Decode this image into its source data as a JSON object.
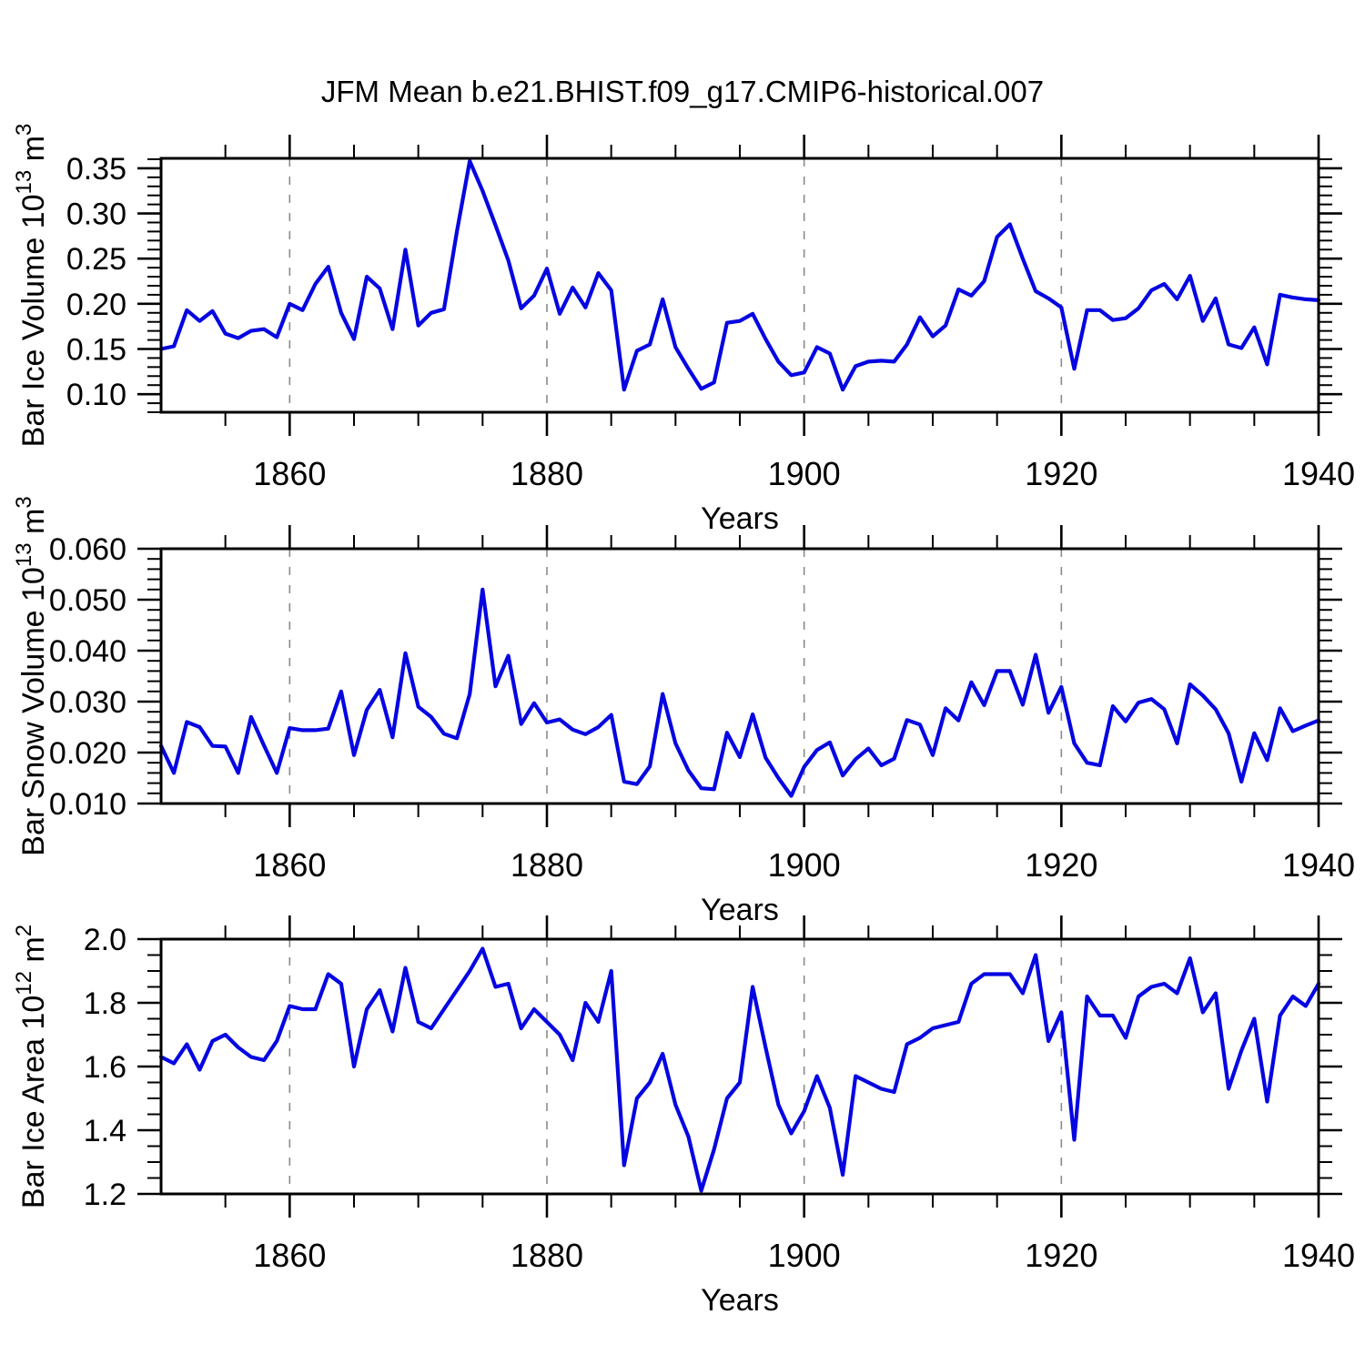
{
  "title": "JFM Mean b.e21.BHIST.f09_g17.CMIP6-historical.007",
  "line_color": "#0505e2",
  "axis_color": "#000000",
  "grid_color": "#8a8a8a",
  "chart_data": [
    {
      "type": "line",
      "name": "ice-volume",
      "ylabel_parts": [
        {
          "t": "Bar Ice Volume 10"
        },
        {
          "sup": "13"
        },
        {
          "t": " m"
        },
        {
          "sup": "3"
        }
      ],
      "xlabel": "Years",
      "x_start": 1850,
      "x_end": 1940,
      "x_major_ticks": [
        1860,
        1880,
        1900,
        1920,
        1940
      ],
      "x_minor_step": 5,
      "gridlines_x": [
        1860,
        1880,
        1900,
        1920
      ],
      "ylim": [
        0.08,
        0.361
      ],
      "y_major_ticks": [
        0.35,
        0.3,
        0.25,
        0.2,
        0.15,
        0.1
      ],
      "y_tick_labels": [
        "0.35",
        "0.30",
        "0.25",
        "0.20",
        "0.15",
        "0.10"
      ],
      "y_minor_step": 0.01,
      "values": [
        0.15,
        0.153,
        0.193,
        0.181,
        0.192,
        0.167,
        0.162,
        0.17,
        0.172,
        0.163,
        0.2,
        0.193,
        0.222,
        0.241,
        0.19,
        0.161,
        0.23,
        0.217,
        0.172,
        0.26,
        0.176,
        0.19,
        0.194,
        0.28,
        0.358,
        0.325,
        0.287,
        0.248,
        0.195,
        0.209,
        0.239,
        0.189,
        0.218,
        0.196,
        0.234,
        0.215,
        0.105,
        0.148,
        0.155,
        0.205,
        0.152,
        0.128,
        0.106,
        0.113,
        0.179,
        0.181,
        0.189,
        0.161,
        0.136,
        0.121,
        0.124,
        0.152,
        0.145,
        0.105,
        0.131,
        0.136,
        0.137,
        0.136,
        0.155,
        0.185,
        0.164,
        0.176,
        0.216,
        0.209,
        0.225,
        0.274,
        0.288,
        0.25,
        0.214,
        0.206,
        0.196,
        0.128,
        0.193,
        0.193,
        0.182,
        0.184,
        0.195,
        0.215,
        0.222,
        0.205,
        0.231,
        0.181,
        0.206,
        0.155,
        0.151,
        0.174,
        0.133,
        0.21,
        0.207,
        0.205,
        0.204
      ]
    },
    {
      "type": "line",
      "name": "snow-volume",
      "ylabel_parts": [
        {
          "t": "Bar Snow Volume 10"
        },
        {
          "sup": "13"
        },
        {
          "t": " m"
        },
        {
          "sup": "3"
        }
      ],
      "xlabel": "Years",
      "x_start": 1850,
      "x_end": 1940,
      "x_major_ticks": [
        1860,
        1880,
        1900,
        1920,
        1940
      ],
      "x_minor_step": 5,
      "gridlines_x": [
        1860,
        1880,
        1900,
        1920
      ],
      "ylim": [
        0.01,
        0.06
      ],
      "y_major_ticks": [
        0.06,
        0.05,
        0.04,
        0.03,
        0.02,
        0.01
      ],
      "y_tick_labels": [
        "0.060",
        "0.050",
        "0.040",
        "0.030",
        "0.020",
        "0.010"
      ],
      "y_minor_step": 0.002,
      "values": [
        0.0213,
        0.016,
        0.026,
        0.025,
        0.0213,
        0.0212,
        0.016,
        0.027,
        0.0214,
        0.016,
        0.0248,
        0.0244,
        0.0244,
        0.0247,
        0.032,
        0.0195,
        0.0284,
        0.0323,
        0.023,
        0.0395,
        0.029,
        0.027,
        0.0237,
        0.0228,
        0.0315,
        0.052,
        0.033,
        0.039,
        0.0256,
        0.0297,
        0.0259,
        0.0265,
        0.0245,
        0.0236,
        0.025,
        0.0274,
        0.0143,
        0.0138,
        0.0173,
        0.0315,
        0.0218,
        0.0165,
        0.013,
        0.0128,
        0.0239,
        0.0191,
        0.0275,
        0.019,
        0.015,
        0.0115,
        0.0172,
        0.0205,
        0.022,
        0.0155,
        0.0187,
        0.0208,
        0.0175,
        0.0188,
        0.0264,
        0.0255,
        0.0195,
        0.0287,
        0.0263,
        0.0338,
        0.0293,
        0.036,
        0.036,
        0.0294,
        0.0392,
        0.0278,
        0.0329,
        0.0218,
        0.018,
        0.0175,
        0.0291,
        0.0261,
        0.0298,
        0.0305,
        0.0285,
        0.0218,
        0.0334,
        0.0312,
        0.0285,
        0.0238,
        0.0143,
        0.0238,
        0.0185,
        0.0287,
        0.0242,
        0.0253,
        0.0263
      ]
    },
    {
      "type": "line",
      "name": "ice-area",
      "ylabel_parts": [
        {
          "t": "Bar Ice Area 10"
        },
        {
          "sup": "12"
        },
        {
          "t": " m"
        },
        {
          "sup": "2"
        }
      ],
      "xlabel": "Years",
      "x_start": 1850,
      "x_end": 1940,
      "x_major_ticks": [
        1860,
        1880,
        1900,
        1920,
        1940
      ],
      "x_minor_step": 5,
      "gridlines_x": [
        1860,
        1880,
        1900,
        1920
      ],
      "ylim": [
        1.2,
        2.0
      ],
      "y_major_ticks": [
        2.0,
        1.8,
        1.6,
        1.4,
        1.2
      ],
      "y_tick_labels": [
        "2.0",
        "1.8",
        "1.6",
        "1.4",
        "1.2"
      ],
      "y_minor_step": 0.05,
      "values": [
        1.63,
        1.61,
        1.67,
        1.59,
        1.68,
        1.7,
        1.66,
        1.63,
        1.62,
        1.68,
        1.79,
        1.78,
        1.78,
        1.89,
        1.86,
        1.6,
        1.78,
        1.84,
        1.71,
        1.91,
        1.74,
        1.72,
        1.78,
        1.84,
        1.9,
        1.97,
        1.85,
        1.86,
        1.72,
        1.78,
        1.74,
        1.7,
        1.62,
        1.8,
        1.74,
        1.9,
        1.29,
        1.5,
        1.55,
        1.64,
        1.48,
        1.38,
        1.21,
        1.34,
        1.5,
        1.55,
        1.85,
        1.66,
        1.48,
        1.39,
        1.46,
        1.57,
        1.47,
        1.26,
        1.57,
        1.55,
        1.53,
        1.52,
        1.67,
        1.69,
        1.72,
        1.73,
        1.74,
        1.86,
        1.89,
        1.89,
        1.89,
        1.83,
        1.95,
        1.68,
        1.77,
        1.37,
        1.82,
        1.76,
        1.76,
        1.69,
        1.82,
        1.85,
        1.86,
        1.83,
        1.94,
        1.77,
        1.83,
        1.53,
        1.65,
        1.75,
        1.49,
        1.76,
        1.82,
        1.79,
        1.86
      ]
    }
  ]
}
